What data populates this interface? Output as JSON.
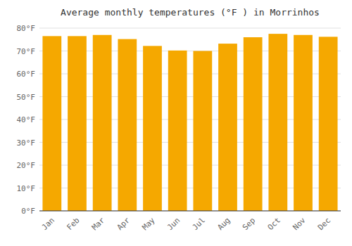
{
  "chart_data": {
    "type": "bar",
    "title": "Average monthly temperatures (°F ) in Morrinhos",
    "categories": [
      "Jan",
      "Feb",
      "Mar",
      "Apr",
      "May",
      "Jun",
      "Jul",
      "Aug",
      "Sep",
      "Oct",
      "Nov",
      "Dec"
    ],
    "values": [
      76.5,
      76.5,
      77.0,
      75.2,
      72.2,
      70.2,
      70.0,
      73.2,
      76.0,
      77.5,
      77.0,
      76.2
    ],
    "color": "#F5A800",
    "ylim": [
      0,
      80
    ],
    "yticks": [
      {
        "value": 0,
        "label": "0°F"
      },
      {
        "value": 10,
        "label": "10°F"
      },
      {
        "value": 20,
        "label": "20°F"
      },
      {
        "value": 30,
        "label": "30°F"
      },
      {
        "value": 40,
        "label": "40°F"
      },
      {
        "value": 50,
        "label": "50°F"
      },
      {
        "value": 60,
        "label": "60°F"
      },
      {
        "value": 70,
        "label": "70°F"
      },
      {
        "value": 80,
        "label": "80°F"
      }
    ],
    "grid": true
  }
}
